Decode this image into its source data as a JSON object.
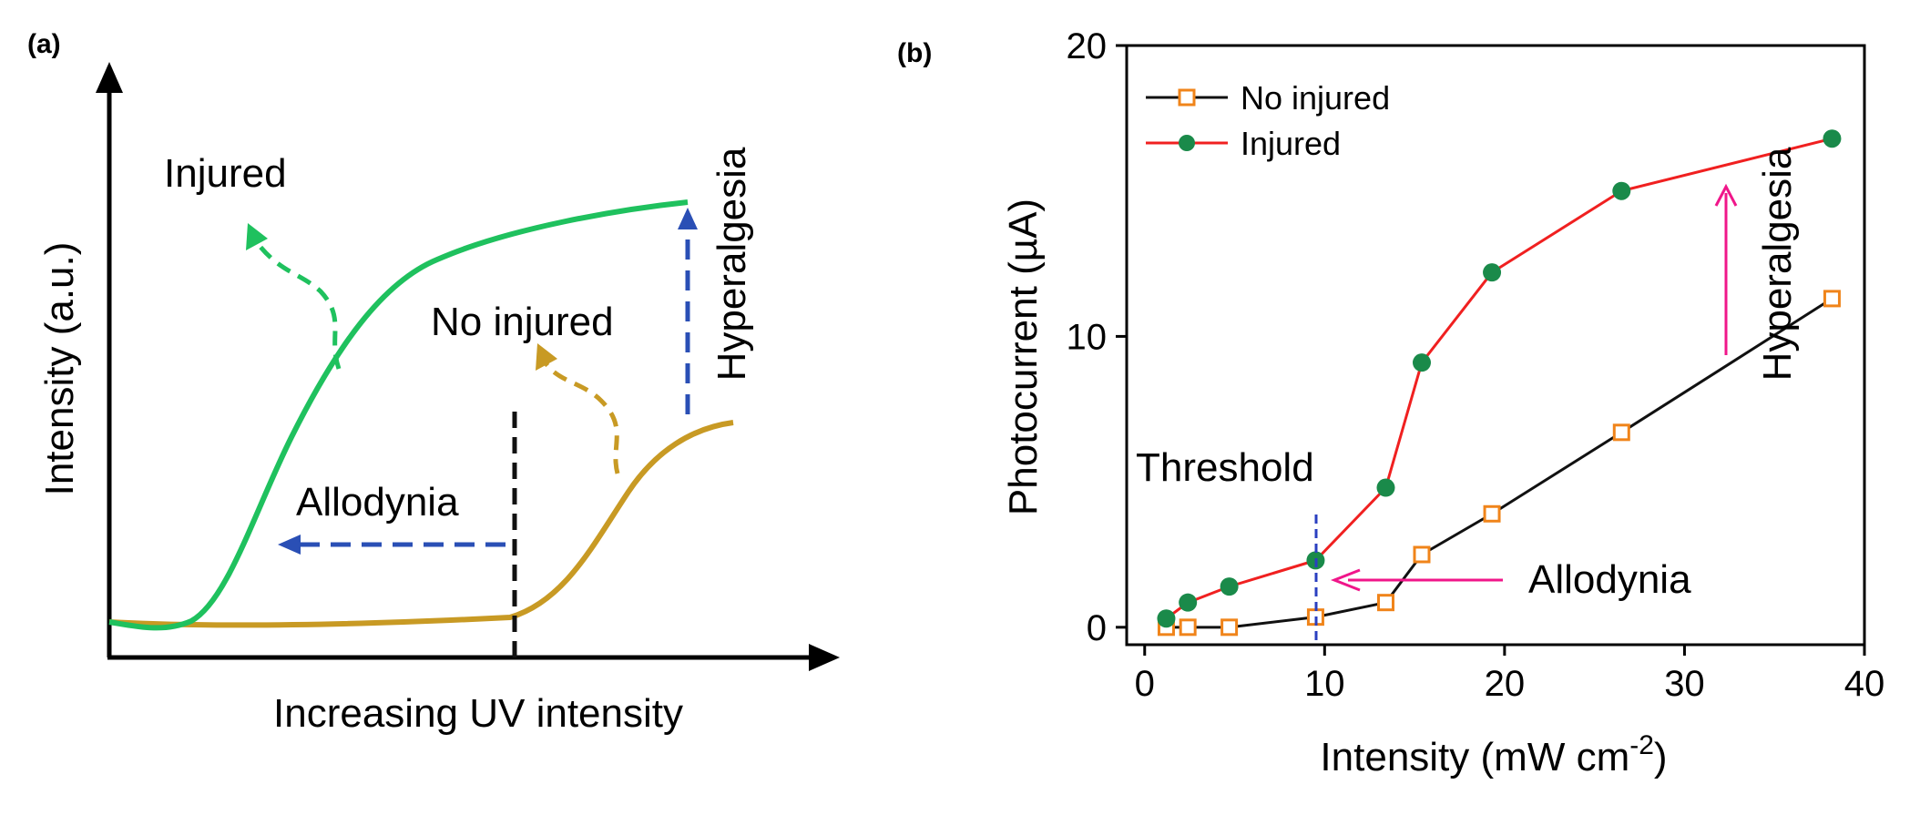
{
  "panel_a": {
    "label": "(a)",
    "ylabel": "Intensity (a.u.)",
    "xlabel": "Increasing UV intensity",
    "labels": {
      "injured": "Injured",
      "no_injured": "No injured",
      "allodynia": "Allodynia",
      "hyperalgesia": "Hyperalgesia"
    },
    "colors": {
      "injured": "#1fc15e",
      "no_injured": "#c89a24",
      "arrow": "#2a4fb5",
      "threshold": "#111111"
    }
  },
  "panel_b": {
    "label": "(b)",
    "annotations": {
      "threshold": "Threshold",
      "allodynia": "Allodynia",
      "hyperalgesia": "Hyperalgesia"
    },
    "xlabel_main": "Intensity (mW cm",
    "xlabel_sup": "-2",
    "xlabel_end": ")",
    "colors": {
      "injured_line": "#f02020",
      "injured_marker": "#1a8a4a",
      "no_injured_line": "#111111",
      "no_injured_marker": "#f0841a",
      "annotation_arrow": "#f0168a",
      "threshold_line": "#2a3fc0"
    }
  },
  "chart_data": [
    {
      "type": "line",
      "title": "",
      "xlabel": "Increasing UV intensity",
      "ylabel": "Intensity (a.u.)",
      "series": [
        {
          "name": "Injured",
          "style": "schematic sigmoid, low threshold, high plateau"
        },
        {
          "name": "No injured",
          "style": "schematic sigmoid, high threshold, low plateau"
        }
      ],
      "annotations": [
        "Injured",
        "No injured",
        "Allodynia",
        "Hyperalgesia"
      ]
    },
    {
      "type": "line",
      "title": "",
      "xlabel": "Intensity (mW cm-2)",
      "ylabel": "Photocurrent (µA)",
      "xlim": [
        -1,
        40
      ],
      "ylim": [
        -0.6,
        20
      ],
      "xticks": [
        0,
        10,
        20,
        30,
        40
      ],
      "yticks": [
        0,
        10,
        20
      ],
      "legend_position": "top-left",
      "series": [
        {
          "name": "No injured",
          "marker": "open-square",
          "x": [
            1.2,
            2.4,
            4.7,
            9.5,
            13.4,
            15.4,
            19.3,
            26.5,
            38.2
          ],
          "y": [
            0.0,
            0.0,
            0.0,
            0.35,
            0.85,
            2.5,
            3.9,
            6.7,
            11.3
          ]
        },
        {
          "name": "Injured",
          "marker": "filled-circle",
          "x": [
            1.2,
            2.4,
            4.7,
            9.5,
            13.4,
            15.4,
            19.3,
            26.5,
            38.2
          ],
          "y": [
            0.3,
            0.85,
            1.4,
            2.3,
            4.8,
            9.1,
            12.2,
            15.0,
            16.8
          ]
        }
      ],
      "annotations": [
        "Threshold",
        "Allodynia",
        "Hyperalgesia"
      ]
    }
  ]
}
